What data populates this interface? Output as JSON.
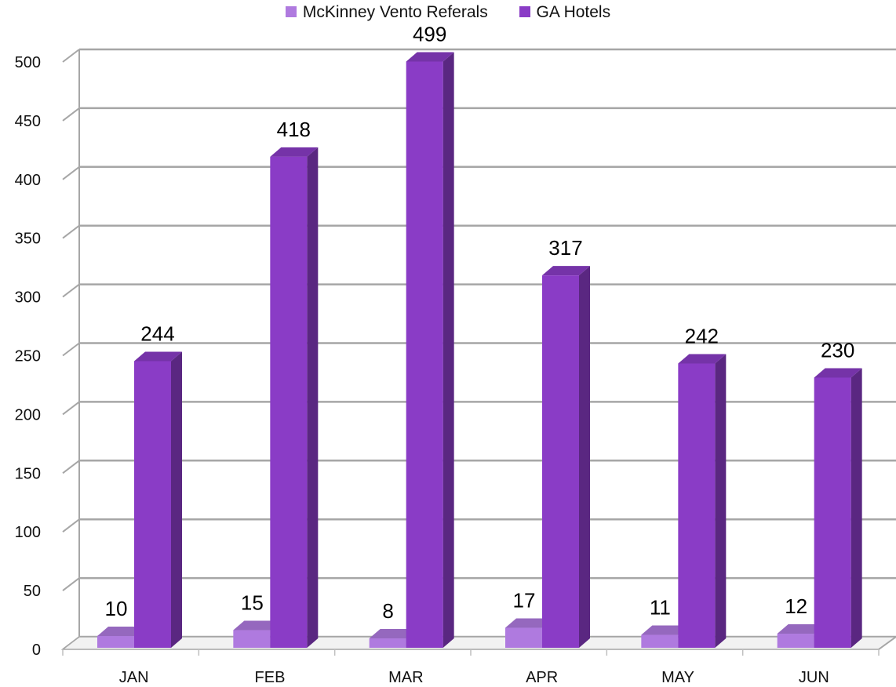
{
  "colors": {
    "mckinney": "#AF7ADF",
    "ga": "#8A3CC6",
    "grid": "#A6A6A6",
    "wall": "#FFFFFF",
    "text": "#000000"
  },
  "chart_data": {
    "type": "bar",
    "categories": [
      "JAN",
      "FEB",
      "MAR",
      "APR",
      "MAY",
      "JUN"
    ],
    "series": [
      {
        "name": "McKinney Vento Referals",
        "values": [
          10,
          15,
          8,
          17,
          11,
          12
        ]
      },
      {
        "name": "GA Hotels",
        "values": [
          244,
          418,
          499,
          317,
          242,
          230
        ]
      }
    ],
    "yticks": [
      0,
      50,
      100,
      150,
      200,
      250,
      300,
      350,
      400,
      450,
      500
    ],
    "ylim": [
      0,
      500
    ],
    "title": "",
    "xlabel": "",
    "ylabel": "",
    "grid": true,
    "legend": "top",
    "style": "3d-clustered-column"
  }
}
